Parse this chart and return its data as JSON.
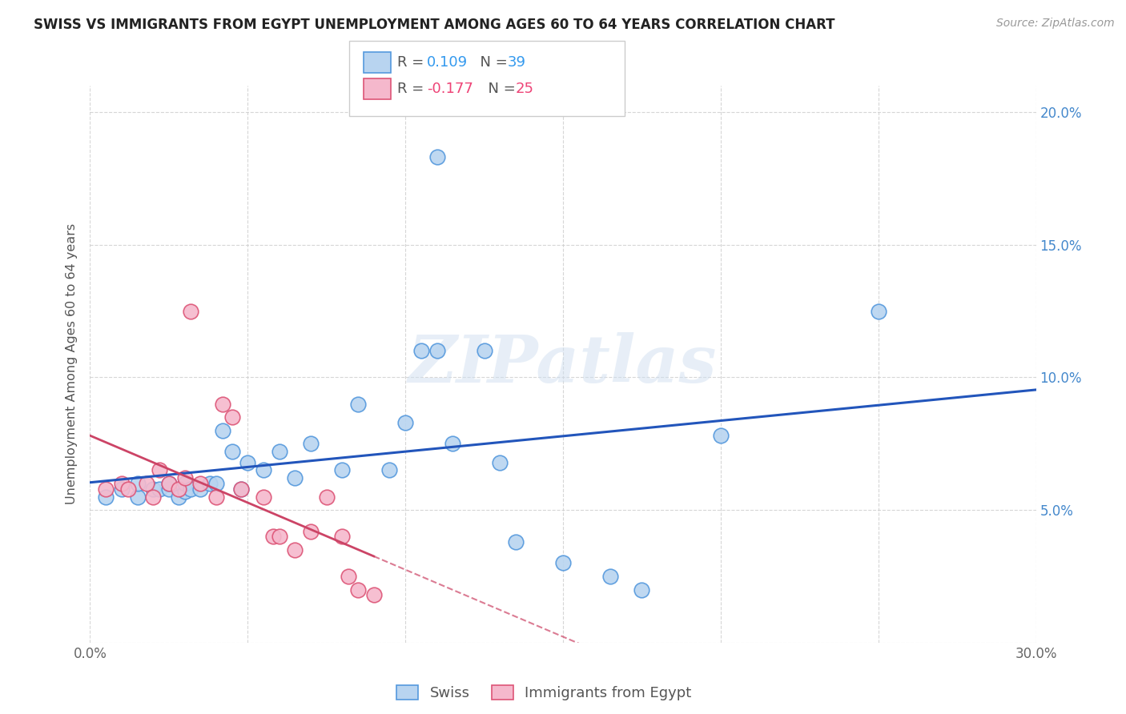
{
  "title": "SWISS VS IMMIGRANTS FROM EGYPT UNEMPLOYMENT AMONG AGES 60 TO 64 YEARS CORRELATION CHART",
  "source": "Source: ZipAtlas.com",
  "ylabel": "Unemployment Among Ages 60 to 64 years",
  "xlim": [
    0.0,
    0.3
  ],
  "ylim": [
    0.0,
    0.21
  ],
  "xticks": [
    0.0,
    0.05,
    0.1,
    0.15,
    0.2,
    0.25,
    0.3
  ],
  "yticks": [
    0.0,
    0.05,
    0.1,
    0.15,
    0.2
  ],
  "legend_r_swiss": "0.109",
  "legend_n_swiss": "39",
  "legend_r_egypt": "-0.177",
  "legend_n_egypt": "25",
  "swiss_color": "#b8d4f0",
  "egypt_color": "#f5b8cc",
  "swiss_edge_color": "#5599dd",
  "egypt_edge_color": "#dd5577",
  "swiss_line_color": "#2255bb",
  "egypt_line_color": "#cc4466",
  "watermark_text": "ZIPatlas",
  "swiss_x": [
    0.005,
    0.01,
    0.015,
    0.015,
    0.02,
    0.022,
    0.025,
    0.025,
    0.028,
    0.03,
    0.03,
    0.032,
    0.035,
    0.038,
    0.04,
    0.042,
    0.045,
    0.048,
    0.05,
    0.055,
    0.06,
    0.065,
    0.07,
    0.08,
    0.085,
    0.095,
    0.1,
    0.11,
    0.115,
    0.125,
    0.13,
    0.135,
    0.15,
    0.165,
    0.175,
    0.2,
    0.105,
    0.11,
    0.25
  ],
  "swiss_y": [
    0.055,
    0.058,
    0.055,
    0.06,
    0.058,
    0.058,
    0.058,
    0.06,
    0.055,
    0.057,
    0.06,
    0.058,
    0.058,
    0.06,
    0.06,
    0.08,
    0.072,
    0.058,
    0.068,
    0.065,
    0.072,
    0.062,
    0.075,
    0.065,
    0.09,
    0.065,
    0.083,
    0.11,
    0.075,
    0.11,
    0.068,
    0.038,
    0.03,
    0.025,
    0.02,
    0.078,
    0.11,
    0.183,
    0.125
  ],
  "egypt_x": [
    0.005,
    0.01,
    0.012,
    0.018,
    0.02,
    0.022,
    0.025,
    0.028,
    0.03,
    0.032,
    0.035,
    0.04,
    0.042,
    0.045,
    0.048,
    0.055,
    0.058,
    0.06,
    0.065,
    0.07,
    0.075,
    0.08,
    0.082,
    0.085,
    0.09
  ],
  "egypt_y": [
    0.058,
    0.06,
    0.058,
    0.06,
    0.055,
    0.065,
    0.06,
    0.058,
    0.062,
    0.125,
    0.06,
    0.055,
    0.09,
    0.085,
    0.058,
    0.055,
    0.04,
    0.04,
    0.035,
    0.042,
    0.055,
    0.04,
    0.025,
    0.02,
    0.018
  ]
}
